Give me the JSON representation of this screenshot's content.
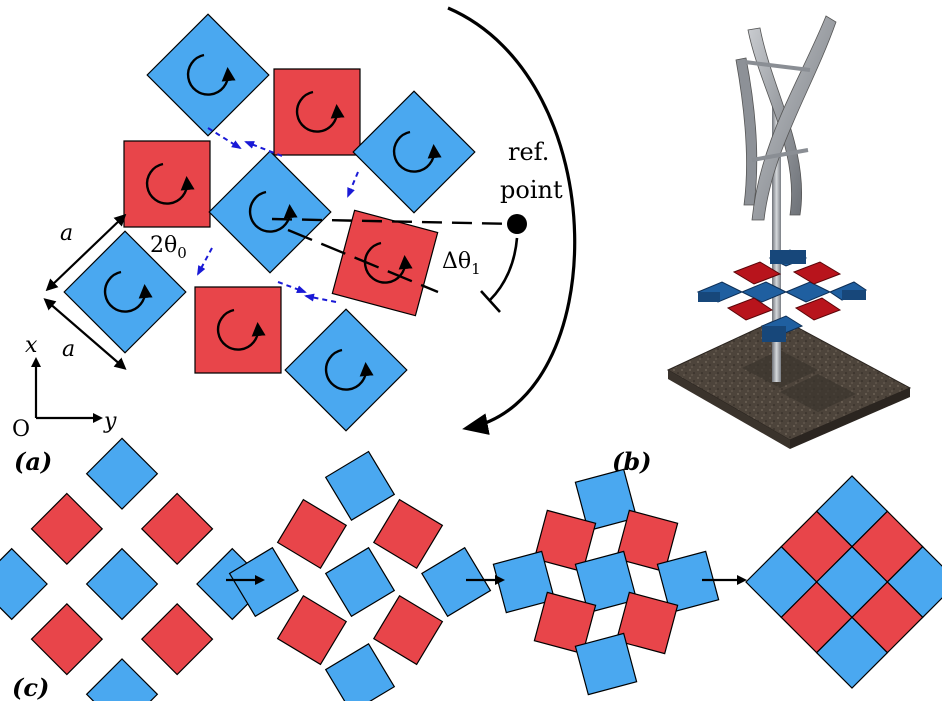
{
  "colors": {
    "blue": "#4aa8f0",
    "red": "#e8454a",
    "arrow_blue": "#1a1ad6",
    "black": "#000000",
    "dark_blue": "#1f5fa0",
    "dark_red": "#b8141c",
    "ground": "#4a4038",
    "metal": "#9a9ea4"
  },
  "panel_a": {
    "label": "(a)",
    "lattice_const_top": "a",
    "lattice_const_bottom": "a",
    "angle_label": "2θ",
    "angle_sub": "0",
    "ref_label_line1": "ref.",
    "ref_label_line2": "point",
    "delta_label": "Δθ",
    "delta_sub": "1",
    "axis_x": "x",
    "axis_y": "y",
    "origin": "O",
    "icons": [
      "rotation-arrow-icon",
      "hinge-arrow-icon",
      "ref-point-dot-icon"
    ]
  },
  "panel_b": {
    "label": "(b)",
    "icons": [
      "wind-turbine-icon"
    ]
  },
  "panel_c": {
    "label": "(c)",
    "stages": 4,
    "icons": [
      "right-arrow-icon"
    ]
  }
}
